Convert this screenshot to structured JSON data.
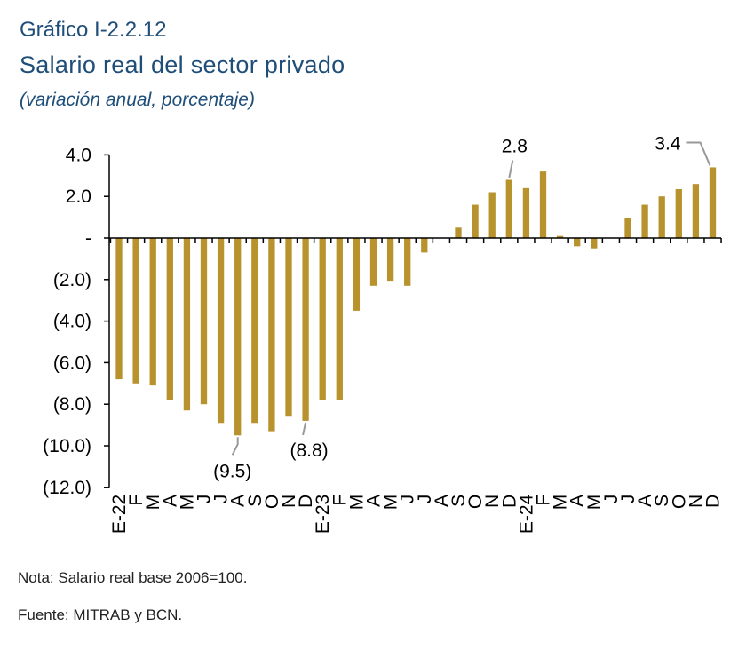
{
  "header": {
    "chart_number": "Gráfico I-2.2.12",
    "title": "Salario real del sector privado",
    "subtitle": "(variación anual, porcentaje)"
  },
  "footer": {
    "note": "Nota: Salario real base 2006=100.",
    "source": "Fuente: MITRAB y BCN."
  },
  "colors": {
    "bar": "#b8922c",
    "axis": "#000000",
    "leader": "#999999"
  },
  "chart_data": {
    "type": "bar",
    "categories": [
      "E-22",
      "F",
      "M",
      "A",
      "M",
      "J",
      "J",
      "A",
      "S",
      "O",
      "N",
      "D",
      "E-23",
      "F",
      "M",
      "A",
      "M",
      "J",
      "J",
      "A",
      "S",
      "O",
      "N",
      "D",
      "E-24",
      "F",
      "M",
      "A",
      "M",
      "J",
      "J",
      "A",
      "S",
      "O",
      "N",
      "D"
    ],
    "values": [
      -6.8,
      -7.0,
      -7.1,
      -7.8,
      -8.3,
      -8.0,
      -8.9,
      -9.5,
      -8.9,
      -9.3,
      -8.6,
      -8.8,
      -7.8,
      -7.8,
      -3.5,
      -2.3,
      -2.1,
      -2.3,
      -0.7,
      0.0,
      0.5,
      1.6,
      2.2,
      2.8,
      2.4,
      3.2,
      0.1,
      -0.4,
      -0.5,
      0.0,
      0.95,
      1.6,
      2.0,
      2.35,
      2.6,
      3.4
    ],
    "ylim": [
      -12,
      4
    ],
    "yticks": [
      {
        "value": 4,
        "label": "4.0"
      },
      {
        "value": 2,
        "label": "2.0"
      },
      {
        "value": 0,
        "label": "-"
      },
      {
        "value": -2,
        "label": "(2.0)"
      },
      {
        "value": -4,
        "label": "(4.0)"
      },
      {
        "value": -6,
        "label": "(6.0)"
      },
      {
        "value": -8,
        "label": "(8.0)"
      },
      {
        "value": -10,
        "label": "(10.0)"
      },
      {
        "value": -12,
        "label": "(12.0)"
      }
    ],
    "annotations": [
      {
        "index": 7,
        "text": "(9.5)"
      },
      {
        "index": 11,
        "text": "(8.8)"
      },
      {
        "index": 23,
        "text": "2.8"
      },
      {
        "index": 35,
        "text": "3.4"
      }
    ],
    "grid": false,
    "legend": "none"
  }
}
